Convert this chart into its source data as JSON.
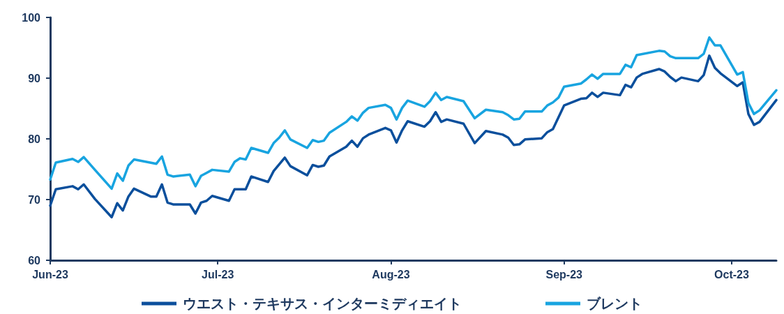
{
  "chart_data": {
    "type": "line",
    "xlim": [
      "2023-06-01",
      "2023-10-09"
    ],
    "xticks": [
      {
        "value": "2023-06-01",
        "label": "Jun-23"
      },
      {
        "value": "2023-07-01",
        "label": "Jul-23"
      },
      {
        "value": "2023-08-01",
        "label": "Aug-23"
      },
      {
        "value": "2023-09-01",
        "label": "Sep-23"
      },
      {
        "value": "2023-10-01",
        "label": "Oct-23"
      }
    ],
    "ylim": [
      60,
      100
    ],
    "yticks": [
      60,
      70,
      80,
      90,
      100
    ],
    "grid": false,
    "legend": "bottom",
    "marker": "none",
    "line_style": "solid",
    "series": [
      {
        "name": "ウエスト・テキサス・インターミディエイト",
        "color": "#0b4f9c",
        "x": [
          "2023-06-01",
          "2023-06-02",
          "2023-06-05",
          "2023-06-06",
          "2023-06-07",
          "2023-06-09",
          "2023-06-12",
          "2023-06-13",
          "2023-06-14",
          "2023-06-15",
          "2023-06-16",
          "2023-06-19",
          "2023-06-20",
          "2023-06-21",
          "2023-06-22",
          "2023-06-23",
          "2023-06-26",
          "2023-06-27",
          "2023-06-28",
          "2023-06-29",
          "2023-06-30",
          "2023-07-03",
          "2023-07-04",
          "2023-07-06",
          "2023-07-07",
          "2023-07-10",
          "2023-07-11",
          "2023-07-13",
          "2023-07-14",
          "2023-07-17",
          "2023-07-18",
          "2023-07-19",
          "2023-07-20",
          "2023-07-21",
          "2023-07-24",
          "2023-07-25",
          "2023-07-26",
          "2023-07-27",
          "2023-07-28",
          "2023-07-31",
          "2023-08-01",
          "2023-08-02",
          "2023-08-03",
          "2023-08-04",
          "2023-08-07",
          "2023-08-08",
          "2023-08-09",
          "2023-08-10",
          "2023-08-11",
          "2023-08-14",
          "2023-08-16",
          "2023-08-18",
          "2023-08-21",
          "2023-08-22",
          "2023-08-23",
          "2023-08-24",
          "2023-08-25",
          "2023-08-28",
          "2023-08-29",
          "2023-08-30",
          "2023-09-01",
          "2023-09-04",
          "2023-09-05",
          "2023-09-06",
          "2023-09-07",
          "2023-09-08",
          "2023-09-11",
          "2023-09-12",
          "2023-09-13",
          "2023-09-14",
          "2023-09-15",
          "2023-09-18",
          "2023-09-19",
          "2023-09-20",
          "2023-09-21",
          "2023-09-22",
          "2023-09-25",
          "2023-09-26",
          "2023-09-27",
          "2023-09-28",
          "2023-09-29",
          "2023-10-02",
          "2023-10-03",
          "2023-10-04",
          "2023-10-05",
          "2023-10-06",
          "2023-10-09"
        ],
        "values": [
          69.0,
          71.7,
          72.2,
          71.7,
          72.5,
          70.1,
          67.1,
          69.4,
          68.2,
          70.5,
          71.8,
          70.5,
          70.5,
          72.5,
          69.5,
          69.2,
          69.2,
          67.7,
          69.5,
          69.8,
          70.6,
          69.8,
          71.7,
          71.7,
          73.8,
          72.9,
          74.7,
          76.9,
          75.5,
          74.0,
          75.7,
          75.4,
          75.6,
          77.1,
          78.7,
          79.7,
          78.7,
          80.1,
          80.7,
          81.8,
          81.4,
          79.4,
          81.4,
          82.9,
          82.0,
          82.9,
          84.4,
          82.8,
          83.2,
          82.5,
          79.3,
          81.3,
          80.7,
          80.2,
          79.0,
          79.1,
          79.9,
          80.1,
          81.1,
          81.6,
          85.5,
          86.6,
          86.7,
          87.6,
          86.9,
          87.6,
          87.2,
          88.9,
          88.5,
          90.1,
          90.7,
          91.5,
          91.1,
          90.2,
          89.5,
          90.1,
          89.5,
          90.5,
          93.7,
          91.7,
          90.8,
          88.7,
          89.3,
          84.1,
          82.3,
          82.8,
          86.4
        ]
      },
      {
        "name": "ブレント",
        "color": "#18a4e0",
        "x": [
          "2023-06-01",
          "2023-06-02",
          "2023-06-05",
          "2023-06-06",
          "2023-06-07",
          "2023-06-09",
          "2023-06-12",
          "2023-06-13",
          "2023-06-14",
          "2023-06-15",
          "2023-06-16",
          "2023-06-20",
          "2023-06-21",
          "2023-06-22",
          "2023-06-23",
          "2023-06-26",
          "2023-06-27",
          "2023-06-28",
          "2023-06-29",
          "2023-06-30",
          "2023-07-03",
          "2023-07-04",
          "2023-07-05",
          "2023-07-06",
          "2023-07-07",
          "2023-07-10",
          "2023-07-11",
          "2023-07-12",
          "2023-07-13",
          "2023-07-14",
          "2023-07-17",
          "2023-07-18",
          "2023-07-19",
          "2023-07-20",
          "2023-07-21",
          "2023-07-24",
          "2023-07-25",
          "2023-07-26",
          "2023-07-27",
          "2023-07-28",
          "2023-07-31",
          "2023-08-01",
          "2023-08-02",
          "2023-08-03",
          "2023-08-04",
          "2023-08-07",
          "2023-08-08",
          "2023-08-09",
          "2023-08-10",
          "2023-08-11",
          "2023-08-14",
          "2023-08-16",
          "2023-08-18",
          "2023-08-21",
          "2023-08-22",
          "2023-08-23",
          "2023-08-24",
          "2023-08-25",
          "2023-08-28",
          "2023-08-29",
          "2023-08-30",
          "2023-08-31",
          "2023-09-01",
          "2023-09-04",
          "2023-09-05",
          "2023-09-06",
          "2023-09-07",
          "2023-09-08",
          "2023-09-11",
          "2023-09-12",
          "2023-09-13",
          "2023-09-14",
          "2023-09-18",
          "2023-09-19",
          "2023-09-20",
          "2023-09-21",
          "2023-09-25",
          "2023-09-26",
          "2023-09-27",
          "2023-09-28",
          "2023-09-29",
          "2023-10-02",
          "2023-10-03",
          "2023-10-04",
          "2023-10-05",
          "2023-10-06",
          "2023-10-09"
        ],
        "values": [
          73.3,
          76.1,
          76.7,
          76.2,
          77.0,
          74.9,
          71.8,
          74.3,
          73.1,
          75.6,
          76.6,
          75.9,
          77.1,
          74.1,
          73.8,
          74.1,
          72.2,
          73.9,
          74.4,
          74.9,
          74.6,
          76.2,
          76.8,
          76.6,
          78.5,
          77.7,
          79.3,
          80.2,
          81.4,
          79.9,
          78.5,
          79.8,
          79.5,
          79.7,
          81.0,
          82.8,
          83.7,
          83.0,
          84.3,
          85.1,
          85.6,
          85.1,
          83.2,
          85.1,
          86.3,
          85.3,
          86.2,
          87.6,
          86.4,
          86.9,
          86.2,
          83.4,
          84.8,
          84.4,
          83.9,
          83.2,
          83.3,
          84.5,
          84.5,
          85.5,
          86.0,
          86.8,
          88.6,
          89.1,
          89.8,
          90.6,
          89.9,
          90.7,
          90.7,
          92.2,
          91.8,
          93.8,
          94.5,
          94.4,
          93.6,
          93.3,
          93.3,
          94.0,
          96.7,
          95.4,
          95.4,
          90.6,
          91.0,
          85.9,
          84.1,
          84.7,
          88.0
        ]
      }
    ]
  }
}
